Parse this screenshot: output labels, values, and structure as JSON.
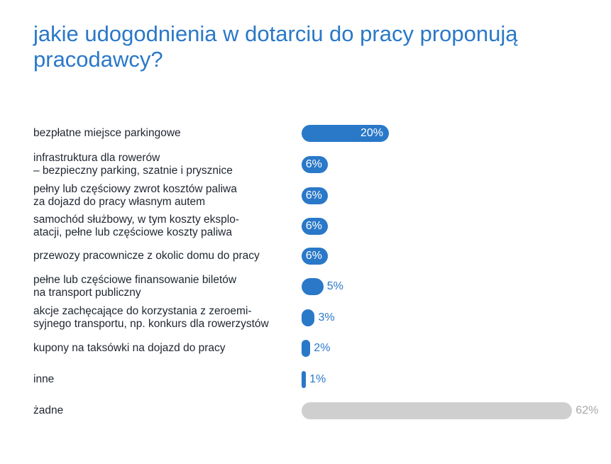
{
  "colors": {
    "title": "#2a78c8",
    "bar": "#2a78c8",
    "bar_muted": "#cfcfcf",
    "label_muted": "#a7a7a7",
    "text": "#1f2530"
  },
  "chart_data": {
    "type": "bar",
    "orientation": "horizontal",
    "title": [
      "jakie udogodnienia w dotarciu do pracy proponują",
      "pracodawcy?"
    ],
    "unit": "%",
    "xlim": [
      0,
      62
    ],
    "grid": false,
    "legend": "none",
    "categories": [
      [
        "bezpłatne miejsce parkingowe"
      ],
      [
        "infrastruktura dla rowerów",
        "– bezpieczny parking, szatnie i prysznice"
      ],
      [
        "pełny lub częściowy zwrot kosztów paliwa",
        "za dojazd do pracy własnym autem"
      ],
      [
        "samochód służbowy, w tym koszty eksplo-",
        "atacji, pełne lub częściowe koszty paliwa"
      ],
      [
        "przewozy pracownicze z okolic domu do pracy"
      ],
      [
        "pełne lub częściowe finansowanie biletów",
        "na transport publiczny"
      ],
      [
        "akcje zachęcające do korzystania z zeroemi-",
        "syjnego transportu, np. konkurs dla rowerzystów"
      ],
      [
        "kupony na taksówki na dojazd do pracy"
      ],
      [
        "inne"
      ],
      [
        "żadne"
      ]
    ],
    "values": [
      20,
      6,
      6,
      6,
      6,
      5,
      3,
      2,
      1,
      62
    ],
    "value_labels": [
      "20%",
      "6%",
      "6%",
      "6%",
      "6%",
      "5%",
      "3%",
      "2%",
      "1%",
      "62%"
    ],
    "muted": [
      false,
      false,
      false,
      false,
      false,
      false,
      false,
      false,
      false,
      true
    ]
  }
}
